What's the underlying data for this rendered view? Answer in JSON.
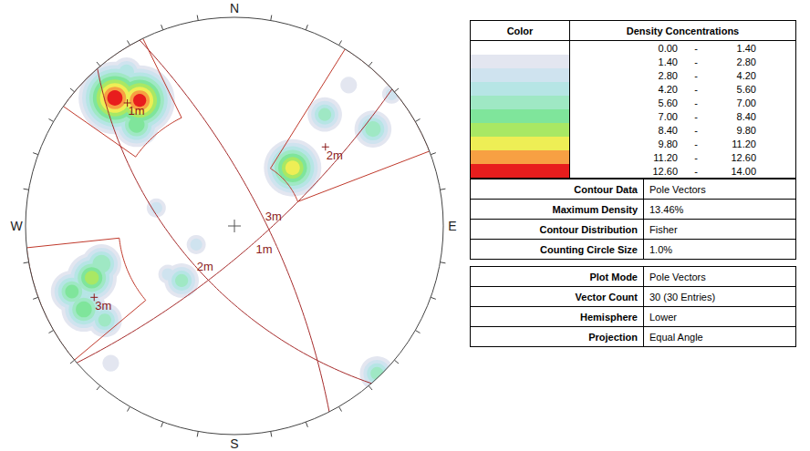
{
  "chart_data": {
    "type": "stereonet",
    "compass_labels": [
      "N",
      "E",
      "S",
      "W"
    ],
    "levels": [
      {
        "value": 0,
        "label": "0.00"
      },
      {
        "value": 1.4,
        "label": "1.40"
      },
      {
        "value": 2.8,
        "label": "2.80"
      },
      {
        "value": 4.2,
        "label": "4.20"
      },
      {
        "value": 5.6,
        "label": "5.60"
      },
      {
        "value": 7,
        "label": "7.00"
      },
      {
        "value": 8.4,
        "label": "8.40"
      },
      {
        "value": 9.8,
        "label": "9.80"
      },
      {
        "value": 11.2,
        "label": "11.20"
      },
      {
        "value": 12.6,
        "label": "12.60"
      },
      {
        "value": 14,
        "label": "14.00"
      }
    ],
    "colors": [
      "#ffffff",
      "#e3e6f0",
      "#cfe3ef",
      "#b6e5e5",
      "#9fe8c4",
      "#7fe59b",
      "#a9e864",
      "#eeee55",
      "#f7a043",
      "#e81d1d"
    ],
    "density_peaks": [
      {
        "trend": 317,
        "plunge": 10,
        "density": 13.46
      },
      {
        "trend": 323,
        "plunge": 16,
        "density": 13.0
      },
      {
        "trend": 316,
        "plunge": 22,
        "density": 8.0
      },
      {
        "trend": 325,
        "plunge": 6,
        "density": 5.0
      },
      {
        "trend": 45,
        "plunge": 47,
        "density": 10.5
      },
      {
        "trend": 39,
        "plunge": 21,
        "density": 6.0
      },
      {
        "trend": 55,
        "plunge": 12,
        "density": 6.5
      },
      {
        "trend": 50,
        "plunge": 1,
        "density": 3.0
      },
      {
        "trend": 39,
        "plunge": 8,
        "density": 2.5
      },
      {
        "trend": 250,
        "plunge": 18,
        "density": 9.0
      },
      {
        "trend": 248,
        "plunge": 10,
        "density": 7.5
      },
      {
        "trend": 241,
        "plunge": 11,
        "density": 8.0
      },
      {
        "trend": 234,
        "plunge": 15,
        "density": 6.0
      },
      {
        "trend": 254,
        "plunge": 23,
        "density": 7.0
      },
      {
        "trend": 224,
        "plunge": 50,
        "density": 6.0
      },
      {
        "trend": 244,
        "plunge": 67,
        "density": 3.0
      },
      {
        "trend": 283,
        "plunge": 48,
        "density": 3.0
      },
      {
        "trend": 234,
        "plunge": 47,
        "density": 3.0
      },
      {
        "trend": 136,
        "plunge": 1,
        "density": 6.0
      },
      {
        "trend": 222,
        "plunge": 7,
        "density": 2.5
      }
    ],
    "sets": [
      {
        "name": "1m",
        "pole": {
          "trend": 319,
          "plunge": 14
        },
        "window": {
          "trend": [
            305,
            334
          ],
          "plunge": [
            0,
            30
          ]
        }
      },
      {
        "name": "2m",
        "pole": {
          "trend": 49,
          "plunge": 30
        },
        "window": {
          "trend": [
            32,
            69
          ],
          "plunge": [
            0,
            54
          ]
        }
      },
      {
        "name": "3m",
        "pole": {
          "trend": 243,
          "plunge": 16
        },
        "window": {
          "trend": [
            230,
            264
          ],
          "plunge": [
            0,
            32
          ]
        }
      }
    ]
  },
  "legend_panel": {
    "color_header": "Color",
    "range_header": "Density Concentrations",
    "range_separator": "-",
    "contour_rows": [
      [
        "Contour Data",
        "Pole Vectors"
      ],
      [
        "Maximum Density",
        "13.46%"
      ],
      [
        "Contour Distribution",
        "Fisher"
      ],
      [
        "Counting Circle Size",
        "1.0%"
      ]
    ],
    "plot_rows": [
      [
        "Plot Mode",
        "Pole Vectors"
      ],
      [
        "Vector Count",
        "30 (30 Entries)"
      ],
      [
        "Hemisphere",
        "Lower"
      ],
      [
        "Projection",
        "Equal Angle"
      ]
    ]
  }
}
